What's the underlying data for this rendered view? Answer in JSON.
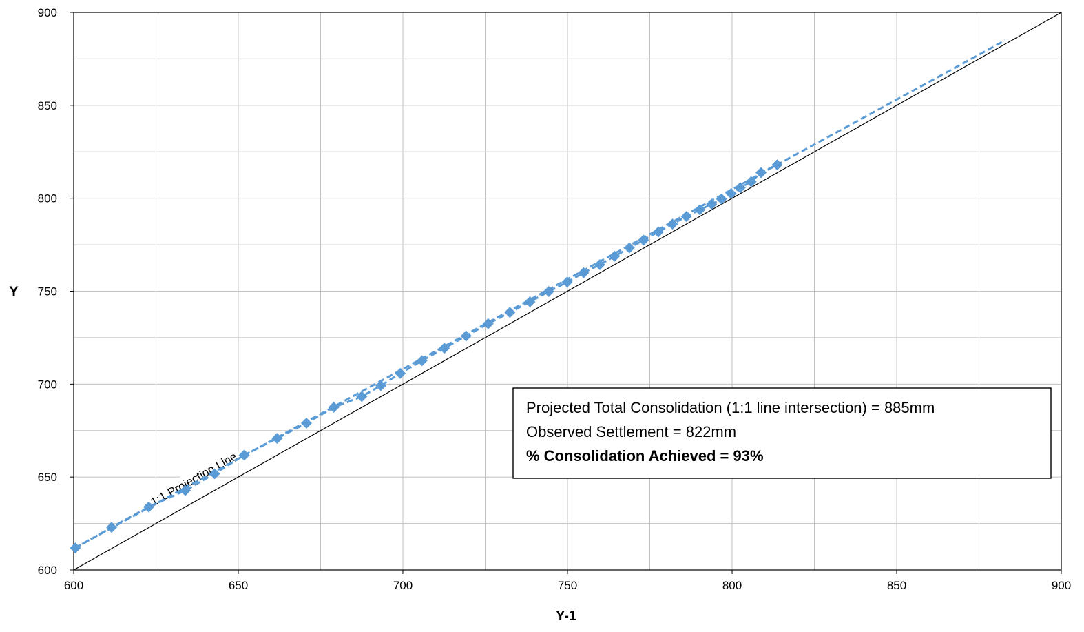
{
  "chart_data": {
    "type": "scatter",
    "xlabel": "Y-1",
    "ylabel": "Y",
    "xlim": [
      600,
      900
    ],
    "ylim": [
      600,
      900
    ],
    "x_major_ticks": [
      600,
      650,
      700,
      750,
      800,
      850,
      900
    ],
    "y_major_ticks": [
      600,
      650,
      700,
      750,
      800,
      850,
      900
    ],
    "x_minor_step": 25,
    "y_minor_step": 25,
    "grid": true,
    "legend": "none",
    "colors": {
      "series": "#5B9BD5",
      "reference_line": "#000000",
      "grid": "#c0c0c0",
      "axis": "#000000"
    },
    "series": [
      {
        "marker": "diamond",
        "style": "dashed-line",
        "x": [
          600.5,
          611.5,
          622.8,
          633.9,
          642.8,
          651.8,
          661.8,
          670.7,
          679.0,
          687.5,
          693.3,
          699.2,
          705.8,
          712.6,
          719.2,
          725.9,
          732.5,
          738.6,
          744.3,
          749.9,
          754.9,
          759.8,
          764.3,
          768.8,
          773.1,
          777.6,
          781.9,
          786.1,
          790.2,
          793.8,
          796.8,
          799.7,
          802.5,
          805.8,
          808.8,
          813.7
        ],
        "y": [
          611.8,
          622.9,
          633.9,
          642.8,
          651.8,
          661.8,
          670.8,
          679.0,
          687.5,
          693.3,
          699.2,
          705.8,
          712.6,
          719.3,
          725.9,
          732.5,
          738.6,
          744.3,
          749.8,
          754.9,
          759.9,
          764.3,
          768.8,
          773.3,
          777.5,
          781.9,
          786.1,
          790.2,
          793.8,
          796.8,
          799.6,
          802.5,
          805.7,
          808.9,
          813.8,
          818.0
        ]
      }
    ],
    "trendline": {
      "style": "dashed",
      "x": [
        600,
        883
      ],
      "y": [
        611.5,
        885
      ]
    },
    "reference_line": {
      "label": "1:1 Projection Line",
      "x": [
        600,
        900
      ],
      "y": [
        600,
        900
      ]
    },
    "annotation_box": {
      "lines": [
        "Projected Total Consolidation (1:1 line intersection) = 885mm",
        "Observed Settlement = 822mm",
        "% Consolidation Achieved = 93%"
      ]
    }
  }
}
